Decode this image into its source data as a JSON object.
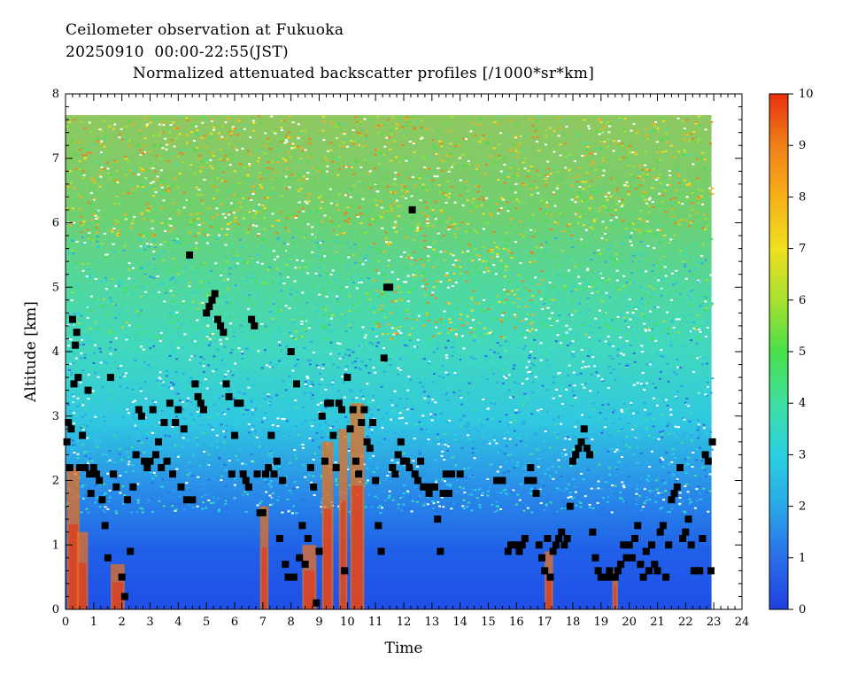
{
  "header": {
    "line1": "Ceilometer observation at Fukuoka",
    "line2": "20250910  00:00-22:55(JST)",
    "line3": "Normalized attenuated backscatter profiles [/1000*sr*km]"
  },
  "chart_data": {
    "type": "heatmap",
    "title": "Normalized attenuated backscatter profiles [/1000*sr*km]",
    "xlabel": "Time",
    "ylabel": "Altitude [km]",
    "xlim": [
      0,
      24
    ],
    "ylim": [
      0,
      8
    ],
    "x_ticks": [
      0,
      1,
      2,
      3,
      4,
      5,
      6,
      7,
      8,
      9,
      10,
      11,
      12,
      13,
      14,
      15,
      16,
      17,
      18,
      19,
      20,
      21,
      22,
      23,
      24
    ],
    "y_ticks": [
      0,
      1,
      2,
      3,
      4,
      5,
      6,
      7,
      8
    ],
    "data_time_range": [
      0,
      22.92
    ],
    "data_altitude_max": 7.67,
    "colorbar": {
      "range": [
        0,
        10
      ],
      "ticks": [
        0,
        1,
        2,
        3,
        4,
        5,
        6,
        7,
        8,
        9,
        10
      ],
      "colors": [
        "#1f3fe0",
        "#2a6ee8",
        "#2aa8e8",
        "#2ad0e0",
        "#3fe0a0",
        "#48e048",
        "#a8e030",
        "#f0e020",
        "#f8b018",
        "#f08018",
        "#e83010"
      ]
    },
    "cloud_base_points": [
      [
        0.05,
        2.6
      ],
      [
        0.1,
        2.9
      ],
      [
        0.15,
        2.2
      ],
      [
        0.2,
        2.8
      ],
      [
        0.25,
        4.5
      ],
      [
        0.3,
        3.5
      ],
      [
        0.35,
        4.1
      ],
      [
        0.4,
        4.3
      ],
      [
        0.45,
        3.6
      ],
      [
        0.5,
        2.2
      ],
      [
        0.6,
        2.7
      ],
      [
        0.7,
        2.2
      ],
      [
        0.8,
        3.4
      ],
      [
        0.85,
        2.1
      ],
      [
        0.9,
        1.8
      ],
      [
        1.0,
        2.2
      ],
      [
        1.1,
        2.1
      ],
      [
        1.2,
        2.0
      ],
      [
        1.3,
        1.7
      ],
      [
        1.4,
        1.3
      ],
      [
        1.5,
        0.8
      ],
      [
        1.6,
        3.6
      ],
      [
        1.7,
        2.1
      ],
      [
        1.8,
        1.9
      ],
      [
        2.0,
        0.5
      ],
      [
        2.1,
        0.2
      ],
      [
        2.2,
        1.7
      ],
      [
        2.3,
        0.9
      ],
      [
        2.4,
        1.9
      ],
      [
        2.5,
        2.4
      ],
      [
        2.6,
        3.1
      ],
      [
        2.7,
        3.0
      ],
      [
        2.8,
        2.3
      ],
      [
        2.9,
        2.2
      ],
      [
        3.0,
        2.3
      ],
      [
        3.1,
        3.1
      ],
      [
        3.2,
        2.4
      ],
      [
        3.3,
        2.6
      ],
      [
        3.4,
        2.2
      ],
      [
        3.5,
        2.9
      ],
      [
        3.6,
        2.3
      ],
      [
        3.7,
        3.2
      ],
      [
        3.8,
        2.1
      ],
      [
        3.9,
        2.9
      ],
      [
        4.0,
        3.1
      ],
      [
        4.1,
        1.9
      ],
      [
        4.2,
        2.8
      ],
      [
        4.3,
        1.7
      ],
      [
        4.4,
        5.5
      ],
      [
        4.5,
        1.7
      ],
      [
        4.6,
        3.5
      ],
      [
        4.7,
        3.3
      ],
      [
        4.8,
        3.2
      ],
      [
        4.9,
        3.1
      ],
      [
        5.0,
        4.6
      ],
      [
        5.1,
        4.7
      ],
      [
        5.2,
        4.8
      ],
      [
        5.3,
        4.9
      ],
      [
        5.4,
        4.5
      ],
      [
        5.5,
        4.4
      ],
      [
        5.6,
        4.3
      ],
      [
        5.7,
        3.5
      ],
      [
        5.8,
        3.3
      ],
      [
        5.9,
        2.1
      ],
      [
        6.0,
        2.7
      ],
      [
        6.1,
        3.2
      ],
      [
        6.2,
        3.2
      ],
      [
        6.3,
        2.1
      ],
      [
        6.4,
        2.0
      ],
      [
        6.5,
        1.9
      ],
      [
        6.6,
        4.5
      ],
      [
        6.7,
        4.4
      ],
      [
        6.8,
        2.1
      ],
      [
        6.9,
        1.5
      ],
      [
        7.0,
        1.5
      ],
      [
        7.1,
        2.1
      ],
      [
        7.2,
        2.2
      ],
      [
        7.3,
        2.7
      ],
      [
        7.4,
        2.1
      ],
      [
        7.5,
        2.3
      ],
      [
        7.6,
        1.1
      ],
      [
        7.7,
        2.0
      ],
      [
        7.8,
        0.7
      ],
      [
        7.9,
        0.5
      ],
      [
        8.0,
        4.0
      ],
      [
        8.1,
        0.5
      ],
      [
        8.2,
        3.5
      ],
      [
        8.3,
        0.8
      ],
      [
        8.4,
        1.3
      ],
      [
        8.5,
        0.7
      ],
      [
        8.6,
        1.1
      ],
      [
        8.7,
        2.2
      ],
      [
        8.8,
        1.9
      ],
      [
        8.9,
        0.1
      ],
      [
        9.0,
        0.9
      ],
      [
        9.1,
        3.0
      ],
      [
        9.2,
        2.3
      ],
      [
        9.3,
        3.2
      ],
      [
        9.4,
        3.2
      ],
      [
        9.5,
        2.7
      ],
      [
        9.6,
        2.2
      ],
      [
        9.7,
        3.2
      ],
      [
        9.8,
        3.1
      ],
      [
        9.9,
        0.6
      ],
      [
        10.0,
        3.6
      ],
      [
        10.1,
        2.8
      ],
      [
        10.2,
        3.1
      ],
      [
        10.3,
        2.3
      ],
      [
        10.4,
        2.1
      ],
      [
        10.5,
        2.9
      ],
      [
        10.6,
        3.1
      ],
      [
        10.7,
        2.6
      ],
      [
        10.8,
        2.5
      ],
      [
        10.9,
        2.9
      ],
      [
        11.0,
        2.0
      ],
      [
        11.1,
        1.3
      ],
      [
        11.2,
        0.9
      ],
      [
        11.3,
        3.9
      ],
      [
        11.4,
        5.0
      ],
      [
        11.5,
        5.0
      ],
      [
        11.6,
        2.2
      ],
      [
        11.7,
        2.1
      ],
      [
        11.8,
        2.4
      ],
      [
        11.9,
        2.6
      ],
      [
        12.0,
        2.3
      ],
      [
        12.1,
        2.3
      ],
      [
        12.2,
        2.2
      ],
      [
        12.3,
        6.2
      ],
      [
        12.4,
        2.1
      ],
      [
        12.5,
        2.0
      ],
      [
        12.6,
        2.3
      ],
      [
        12.7,
        1.9
      ],
      [
        12.8,
        1.9
      ],
      [
        12.9,
        1.8
      ],
      [
        13.0,
        1.9
      ],
      [
        13.1,
        1.9
      ],
      [
        13.2,
        1.4
      ],
      [
        13.3,
        0.9
      ],
      [
        13.4,
        1.8
      ],
      [
        13.5,
        2.1
      ],
      [
        13.6,
        1.8
      ],
      [
        13.7,
        2.1
      ],
      [
        14.0,
        2.1
      ],
      [
        15.3,
        2.0
      ],
      [
        15.5,
        2.0
      ],
      [
        15.7,
        0.9
      ],
      [
        15.8,
        1.0
      ],
      [
        15.9,
        1.0
      ],
      [
        16.0,
        1.0
      ],
      [
        16.1,
        0.9
      ],
      [
        16.2,
        1.0
      ],
      [
        16.3,
        1.1
      ],
      [
        16.4,
        2.0
      ],
      [
        16.5,
        2.2
      ],
      [
        16.6,
        2.0
      ],
      [
        16.7,
        1.8
      ],
      [
        16.8,
        1.0
      ],
      [
        16.9,
        0.8
      ],
      [
        17.0,
        0.6
      ],
      [
        17.1,
        1.1
      ],
      [
        17.2,
        0.5
      ],
      [
        17.3,
        0.9
      ],
      [
        17.4,
        1.0
      ],
      [
        17.5,
        1.1
      ],
      [
        17.6,
        1.2
      ],
      [
        17.7,
        1.0
      ],
      [
        17.8,
        1.1
      ],
      [
        17.9,
        1.6
      ],
      [
        18.0,
        2.3
      ],
      [
        18.1,
        2.4
      ],
      [
        18.2,
        2.5
      ],
      [
        18.3,
        2.6
      ],
      [
        18.4,
        2.8
      ],
      [
        18.5,
        2.5
      ],
      [
        18.6,
        2.4
      ],
      [
        18.7,
        1.2
      ],
      [
        18.8,
        0.8
      ],
      [
        18.9,
        0.6
      ],
      [
        19.0,
        0.5
      ],
      [
        19.1,
        0.5
      ],
      [
        19.2,
        0.5
      ],
      [
        19.3,
        0.6
      ],
      [
        19.4,
        0.5
      ],
      [
        19.5,
        0.5
      ],
      [
        19.6,
        0.6
      ],
      [
        19.7,
        0.7
      ],
      [
        19.8,
        1.0
      ],
      [
        19.9,
        0.8
      ],
      [
        20.0,
        1.0
      ],
      [
        20.1,
        0.8
      ],
      [
        20.2,
        1.1
      ],
      [
        20.3,
        1.3
      ],
      [
        20.4,
        0.7
      ],
      [
        20.5,
        0.5
      ],
      [
        20.6,
        0.9
      ],
      [
        20.7,
        0.6
      ],
      [
        20.8,
        1.0
      ],
      [
        20.9,
        0.7
      ],
      [
        21.0,
        0.6
      ],
      [
        21.1,
        1.2
      ],
      [
        21.2,
        1.3
      ],
      [
        21.3,
        0.5
      ],
      [
        21.4,
        1.0
      ],
      [
        21.5,
        1.7
      ],
      [
        21.6,
        1.8
      ],
      [
        21.7,
        1.9
      ],
      [
        21.8,
        2.2
      ],
      [
        21.9,
        1.1
      ],
      [
        22.0,
        1.2
      ],
      [
        22.1,
        1.4
      ],
      [
        22.2,
        1.0
      ],
      [
        22.3,
        0.6
      ],
      [
        22.4,
        0.6
      ],
      [
        22.5,
        0.6
      ],
      [
        22.6,
        1.1
      ],
      [
        22.7,
        2.4
      ],
      [
        22.8,
        2.3
      ],
      [
        22.9,
        0.6
      ],
      [
        22.95,
        2.6
      ]
    ]
  }
}
